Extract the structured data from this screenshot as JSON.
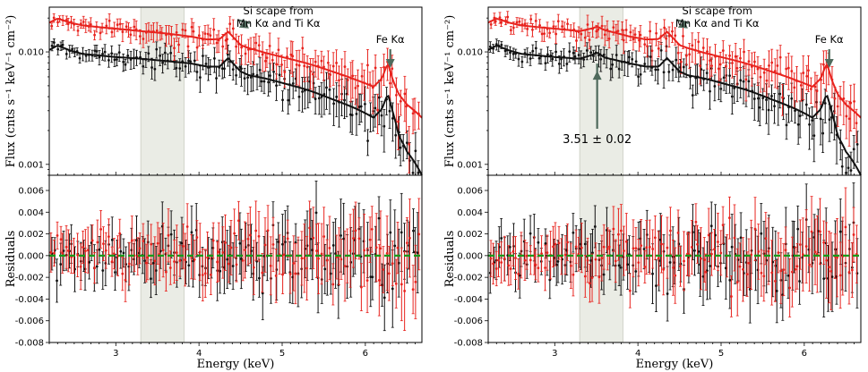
{
  "colors": {
    "black_series": "#111111",
    "red_series": "#e8231e",
    "zero_line": "#1a9a1a",
    "arrow": "#4f6a5c",
    "band_fill": "#e3e6dc"
  },
  "chart_data": [
    {
      "panel": "left",
      "type": "line",
      "scale": "log-y",
      "x_range": [
        2.2,
        6.68
      ],
      "y_range": [
        0.0008,
        0.025
      ],
      "ylabel": "Flux (cnts s⁻¹ keV⁻¹ cm⁻²)",
      "yticks": [
        "0.010",
        "0.001"
      ],
      "ytick_values": [
        0.01,
        0.001
      ],
      "highlight_band": [
        3.3,
        3.82
      ],
      "series": [
        {
          "model": {
            "x": [
              2.2,
              2.3,
              2.45,
              2.6,
              2.8,
              3.0,
              3.3,
              3.6,
              3.9,
              4.1,
              4.25,
              4.35,
              4.43,
              4.5,
              4.6,
              4.8,
              5.0,
              5.3,
              5.6,
              5.9,
              6.1,
              6.2,
              6.27,
              6.33,
              6.4,
              6.5,
              6.68
            ],
            "y": [
              0.0104,
              0.0114,
              0.0103,
              0.0096,
              0.0093,
              0.009,
              0.0087,
              0.0083,
              0.0079,
              0.0074,
              0.0074,
              0.0088,
              0.0076,
              0.0067,
              0.0062,
              0.0058,
              0.0053,
              0.0046,
              0.0038,
              0.0031,
              0.0026,
              0.0031,
              0.0042,
              0.0029,
              0.0018,
              0.0013,
              0.0008
            ]
          }
        },
        {
          "model": {
            "x": [
              2.2,
              2.3,
              2.45,
              2.6,
              2.8,
              3.0,
              3.3,
              3.6,
              3.9,
              4.1,
              4.25,
              4.35,
              4.43,
              4.5,
              4.6,
              4.8,
              5.0,
              5.3,
              5.6,
              5.9,
              6.1,
              6.2,
              6.27,
              6.33,
              6.4,
              6.5,
              6.68
            ],
            "y": [
              0.0182,
              0.0198,
              0.0182,
              0.0172,
              0.0166,
              0.0161,
              0.0153,
              0.0146,
              0.0137,
              0.0129,
              0.013,
              0.0151,
              0.0131,
              0.0115,
              0.0108,
              0.0098,
              0.009,
              0.0079,
              0.0067,
              0.0056,
              0.0049,
              0.0058,
              0.0079,
              0.0056,
              0.0042,
              0.0034,
              0.0026
            ]
          }
        }
      ],
      "annotations": [
        {
          "lines": [
            "Si scape from",
            "Mn Kα and Ti Kα"
          ],
          "arrow_to": [
            4.48,
            0.0165
          ]
        },
        {
          "lines": [
            "Fe Kα"
          ],
          "arrow_to": [
            6.3,
            0.0072
          ]
        }
      ]
    },
    {
      "panel": "left",
      "type": "scatter",
      "x_range": [
        2.2,
        6.68
      ],
      "y_range": [
        -0.008,
        0.0074
      ],
      "xlabel": "Energy (keV)",
      "ylabel": "Residuals",
      "xticks": [
        "3",
        "4",
        "5",
        "6"
      ],
      "xtick_values": [
        3,
        4,
        5,
        6
      ],
      "yticks": [
        "0.006",
        "0.004",
        "0.002",
        "0.000",
        "-0.002",
        "-0.004",
        "-0.006",
        "-0.008"
      ],
      "ytick_values": [
        0.006,
        0.004,
        0.002,
        0.0,
        -0.002,
        -0.004,
        -0.006,
        -0.008
      ],
      "zero_line": 0.0,
      "highlight_band": [
        3.3,
        3.82
      ]
    },
    {
      "panel": "right",
      "type": "line",
      "scale": "log-y",
      "x_range": [
        2.2,
        6.68
      ],
      "y_range": [
        0.0008,
        0.025
      ],
      "ylabel": "Flux (cnts s⁻¹ keV⁻¹ cm⁻²)",
      "yticks": [
        "0.010",
        "0.001"
      ],
      "ytick_values": [
        0.01,
        0.001
      ],
      "highlight_band": [
        3.3,
        3.82
      ],
      "series": [
        {
          "model": {
            "x": [
              2.2,
              2.3,
              2.45,
              2.6,
              2.8,
              3.0,
              3.3,
              3.45,
              3.51,
              3.6,
              3.9,
              4.1,
              4.25,
              4.35,
              4.43,
              4.5,
              4.6,
              4.8,
              5.0,
              5.3,
              5.6,
              5.9,
              6.1,
              6.2,
              6.27,
              6.33,
              6.4,
              6.5,
              6.68
            ],
            "y": [
              0.0104,
              0.0114,
              0.0103,
              0.0096,
              0.0093,
              0.009,
              0.0087,
              0.0094,
              0.0099,
              0.0089,
              0.0079,
              0.0074,
              0.0074,
              0.0088,
              0.0076,
              0.0067,
              0.0062,
              0.0058,
              0.0053,
              0.0046,
              0.0038,
              0.0031,
              0.0026,
              0.0031,
              0.0042,
              0.0029,
              0.0018,
              0.0013,
              0.0008
            ]
          }
        },
        {
          "model": {
            "x": [
              2.2,
              2.3,
              2.45,
              2.6,
              2.8,
              3.0,
              3.3,
              3.45,
              3.51,
              3.6,
              3.9,
              4.1,
              4.25,
              4.35,
              4.43,
              4.5,
              4.6,
              4.8,
              5.0,
              5.3,
              5.6,
              5.9,
              6.1,
              6.2,
              6.27,
              6.33,
              6.4,
              6.5,
              6.68
            ],
            "y": [
              0.0182,
              0.0198,
              0.0182,
              0.0172,
              0.0166,
              0.0161,
              0.0153,
              0.0162,
              0.0168,
              0.0156,
              0.0137,
              0.0129,
              0.013,
              0.0151,
              0.0131,
              0.0115,
              0.0108,
              0.0098,
              0.009,
              0.0079,
              0.0067,
              0.0056,
              0.0049,
              0.0058,
              0.0079,
              0.0056,
              0.0042,
              0.0034,
              0.0026
            ]
          }
        }
      ],
      "annotations": [
        {
          "lines": [
            "Si scape from",
            "Mn Kα and Ti Kα"
          ],
          "arrow_to": [
            4.48,
            0.0165
          ]
        },
        {
          "lines": [
            "Fe Kα"
          ],
          "arrow_to": [
            6.3,
            0.0072
          ]
        },
        {
          "lines": [
            "3.51 ± 0.02"
          ],
          "arrow_to": [
            3.51,
            0.0068
          ]
        }
      ]
    },
    {
      "panel": "right",
      "type": "scatter",
      "x_range": [
        2.2,
        6.68
      ],
      "y_range": [
        -0.008,
        0.0074
      ],
      "xlabel": "Energy (keV)",
      "ylabel": "Residuals",
      "xticks": [
        "3",
        "4",
        "5",
        "6"
      ],
      "xtick_values": [
        3,
        4,
        5,
        6
      ],
      "yticks": [
        "0.006",
        "0.004",
        "0.002",
        "0.000",
        "-0.002",
        "-0.004",
        "-0.006",
        "-0.008"
      ],
      "ytick_values": [
        0.006,
        0.004,
        0.002,
        0.0,
        -0.002,
        -0.004,
        -0.006,
        -0.008
      ],
      "zero_line": 0.0,
      "highlight_band": [
        3.3,
        3.82
      ]
    }
  ]
}
